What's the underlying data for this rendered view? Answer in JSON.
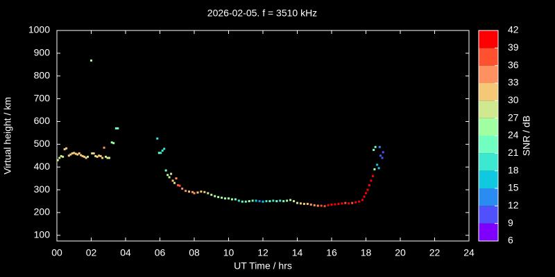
{
  "chart_data": {
    "type": "scatter",
    "title": "2026-02-05. f = 3510 kHz",
    "x_label": "UT Time / hrs",
    "y_label": "Virtual height / km",
    "colorbar_label": "SNR / dB",
    "xlim": [
      0,
      24
    ],
    "ylim": [
      75,
      1000
    ],
    "xticks": [
      {
        "value": 0,
        "label": "00"
      },
      {
        "value": 2,
        "label": "02"
      },
      {
        "value": 4,
        "label": "04"
      },
      {
        "value": 6,
        "label": "06"
      },
      {
        "value": 8,
        "label": "08"
      },
      10,
      12,
      14,
      16,
      18,
      20,
      22,
      24
    ],
    "yticks": [
      100,
      200,
      300,
      400,
      500,
      600,
      700,
      800,
      900,
      1000
    ],
    "cbticks": [
      6,
      9,
      12,
      15,
      18,
      21,
      24,
      27,
      30,
      33,
      36,
      39,
      42
    ],
    "colors": [
      "#7f00ff",
      "#5050fc",
      "#2a8cf0",
      "#10c8e0",
      "#3ce8d0",
      "#70ffc0",
      "#a0ffa0",
      "#d0e890",
      "#f5c878",
      "#ff9060",
      "#ff5030",
      "#ff0000"
    ],
    "x": [
      0.05,
      0.15,
      0.25,
      0.35,
      0.45,
      0.55,
      0.7,
      0.8,
      0.9,
      1.0,
      1.1,
      1.2,
      1.3,
      1.4,
      1.5,
      1.6,
      1.7,
      1.8,
      2.0,
      2.05,
      2.15,
      2.25,
      2.35,
      2.45,
      2.55,
      2.65,
      2.75,
      2.85,
      2.95,
      3.05,
      3.2,
      3.3,
      3.45,
      3.55,
      5.85,
      5.95,
      6.05,
      6.15,
      6.25,
      6.35,
      6.45,
      6.55,
      6.65,
      6.75,
      6.85,
      6.95,
      7.05,
      7.15,
      7.3,
      7.5,
      7.7,
      7.9,
      8.0,
      8.2,
      8.4,
      8.6,
      8.8,
      9.0,
      9.2,
      9.4,
      9.6,
      9.8,
      10.0,
      10.2,
      10.4,
      10.6,
      10.8,
      11.0,
      11.2,
      11.4,
      11.6,
      11.8,
      12.0,
      12.2,
      12.4,
      12.6,
      12.8,
      13.0,
      13.2,
      13.4,
      13.6,
      13.8,
      14.0,
      14.2,
      14.4,
      14.6,
      14.8,
      15.0,
      15.2,
      15.4,
      15.6,
      15.8,
      16.0,
      16.2,
      16.4,
      16.6,
      16.8,
      17.0,
      17.2,
      17.4,
      17.6,
      17.8,
      17.9,
      18.0,
      18.1,
      18.2,
      18.3,
      18.4,
      18.5,
      18.45,
      18.55,
      18.65,
      18.75,
      18.8,
      18.85,
      18.95,
      19.0
    ],
    "y": [
      430,
      440,
      448,
      445,
      478,
      482,
      450,
      455,
      460,
      462,
      458,
      455,
      460,
      452,
      448,
      445,
      440,
      445,
      868,
      460,
      460,
      448,
      445,
      450,
      448,
      440,
      485,
      445,
      440,
      440,
      508,
      505,
      570,
      570,
      525,
      462,
      462,
      472,
      480,
      385,
      365,
      355,
      370,
      340,
      330,
      350,
      320,
      318,
      305,
      295,
      292,
      290,
      285,
      288,
      292,
      290,
      285,
      278,
      272,
      268,
      265,
      262,
      262,
      258,
      258,
      252,
      248,
      248,
      250,
      252,
      252,
      250,
      248,
      250,
      250,
      252,
      250,
      252,
      250,
      252,
      255,
      250,
      242,
      240,
      238,
      238,
      235,
      232,
      230,
      230,
      228,
      232,
      235,
      236,
      238,
      240,
      242,
      240,
      242,
      245,
      248,
      255,
      270,
      285,
      300,
      320,
      340,
      360,
      390,
      475,
      488,
      410,
      395,
      488,
      450,
      440,
      465
    ],
    "snr": [
      27,
      27,
      27,
      27,
      30,
      30,
      30,
      30,
      30,
      30,
      30,
      30,
      30,
      30,
      30,
      30,
      30,
      27,
      24,
      27,
      30,
      27,
      30,
      30,
      30,
      30,
      33,
      27,
      27,
      27,
      24,
      24,
      21,
      21,
      18,
      21,
      18,
      18,
      18,
      21,
      24,
      27,
      27,
      30,
      27,
      33,
      36,
      36,
      33,
      33,
      30,
      33,
      33,
      30,
      30,
      30,
      27,
      27,
      24,
      24,
      24,
      24,
      24,
      24,
      21,
      18,
      21,
      21,
      24,
      21,
      15,
      12,
      15,
      18,
      21,
      18,
      21,
      18,
      21,
      24,
      24,
      27,
      27,
      30,
      30,
      30,
      33,
      33,
      33,
      36,
      36,
      39,
      39,
      39,
      39,
      39,
      36,
      39,
      36,
      39,
      39,
      39,
      39,
      39,
      39,
      39,
      39,
      39,
      24,
      21,
      21,
      15,
      15,
      12,
      9,
      9,
      9
    ]
  }
}
